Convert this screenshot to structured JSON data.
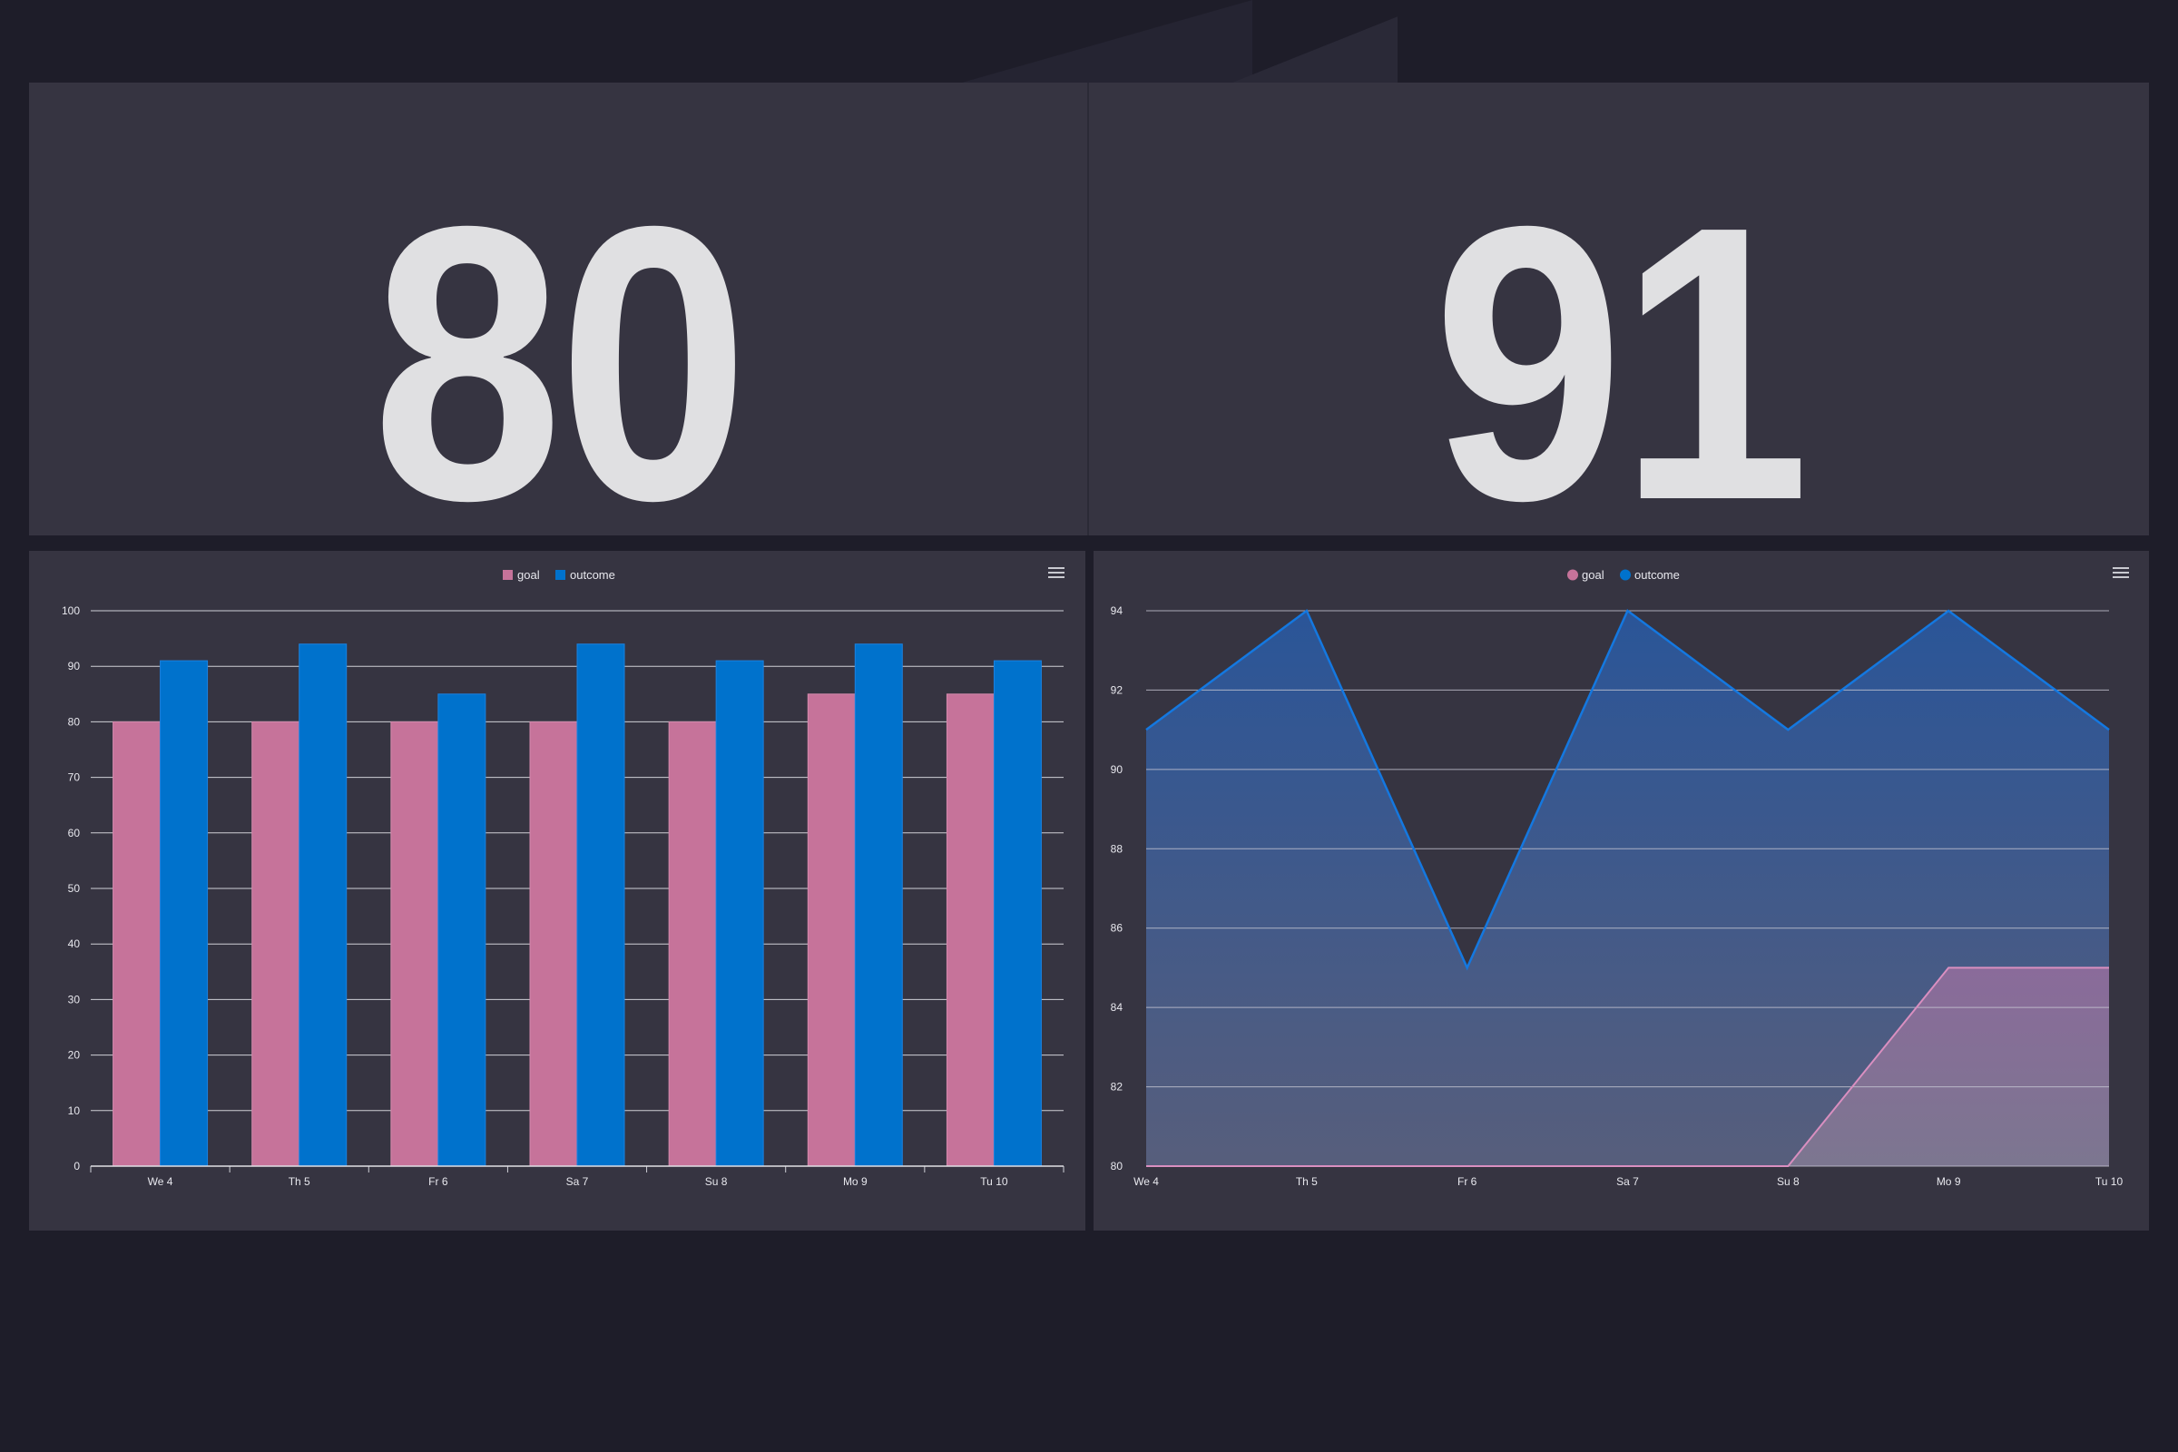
{
  "kpis": {
    "goal": {
      "value": "80",
      "label": "goal"
    },
    "outcome": {
      "value": "91",
      "label": "outcome"
    }
  },
  "colors": {
    "background": "#1e1d29",
    "panel": "#363441",
    "goal": "#c6739a",
    "outcome": "#0072cc",
    "outcome_line": "#1478e0",
    "goal_line": "#d98fc0",
    "text": "#e0e0e2"
  },
  "icons": {
    "chart_menu": "hamburger-menu-icon"
  },
  "chart_data": [
    {
      "type": "bar",
      "categories": [
        "We 4",
        "Th 5",
        "Fr 6",
        "Sa 7",
        "Su 8",
        "Mo 9",
        "Tu 10"
      ],
      "series": [
        {
          "name": "goal",
          "values": [
            80,
            80,
            80,
            80,
            80,
            85,
            85
          ]
        },
        {
          "name": "outcome",
          "values": [
            91,
            94,
            85,
            94,
            91,
            94,
            91
          ]
        }
      ],
      "ylim": [
        0,
        100
      ],
      "yticks": [
        0,
        10,
        20,
        30,
        40,
        50,
        60,
        70,
        80,
        90,
        100
      ],
      "legend": "top-center",
      "grid": true
    },
    {
      "type": "area",
      "categories": [
        "We 4",
        "Th 5",
        "Fr 6",
        "Sa 7",
        "Su 8",
        "Mo 9",
        "Tu 10"
      ],
      "series": [
        {
          "name": "goal",
          "values": [
            80,
            80,
            80,
            80,
            80,
            85,
            85
          ]
        },
        {
          "name": "outcome",
          "values": [
            91,
            94,
            85,
            94,
            91,
            94,
            91
          ]
        }
      ],
      "ylim": [
        80,
        94
      ],
      "yticks": [
        80,
        82,
        84,
        86,
        88,
        90,
        92,
        94
      ],
      "legend": "top-center",
      "grid": true
    }
  ]
}
